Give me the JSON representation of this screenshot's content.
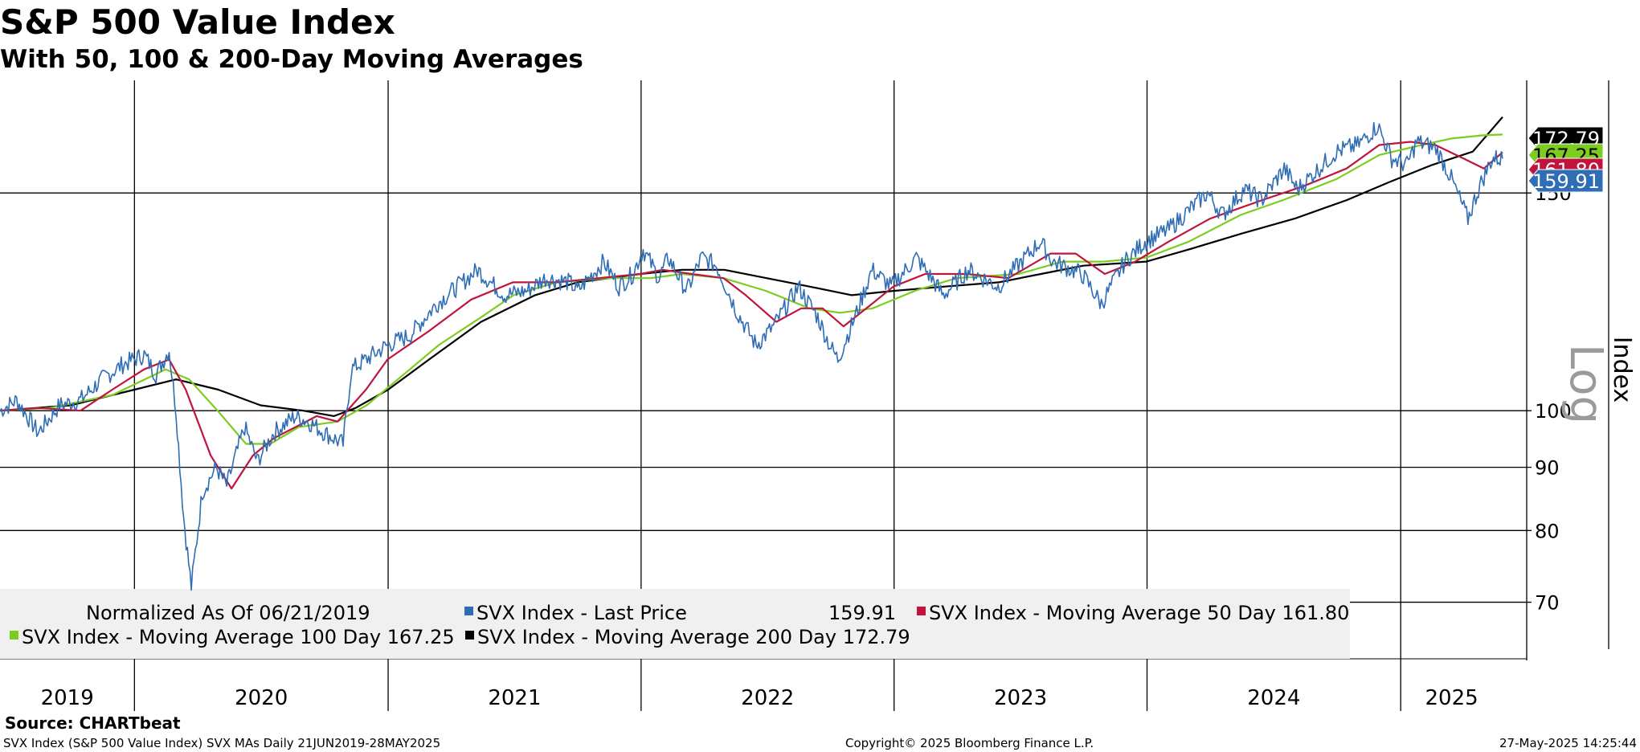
{
  "header": {
    "title": "S&P 500 Value Index",
    "subtitle": "With 50, 100 & 200-Day Moving Averages"
  },
  "footer": {
    "source": "Source: CHARTbeat",
    "description": "SVX Index (S&P 500 Value Index) SVX MAs  Daily 21JUN2019-28MAY2025",
    "copyright": "Copyright© 2025 Bloomberg Finance L.P.",
    "timestamp": "27-May-2025 14:25:44"
  },
  "chart_data": {
    "type": "line",
    "scale": "log",
    "axis_label": "Index",
    "scale_label": "Log",
    "ylim": [
      63,
      185
    ],
    "xlim": [
      "2019-06-21",
      "2025-05-28"
    ],
    "y_ticks": [
      70,
      80,
      90,
      100,
      150
    ],
    "x_labels": [
      "2019",
      "2020",
      "2021",
      "2022",
      "2023",
      "2024",
      "2025"
    ],
    "year_boundaries": [
      "2020-01-01",
      "2021-01-01",
      "2022-01-01",
      "2023-01-01",
      "2024-01-01",
      "2025-01-01"
    ],
    "legend": {
      "normalized_note": "Normalized As Of 06/21/2019",
      "entries": [
        {
          "label": "SVX Index - Last Price",
          "value": "159.91"
        },
        {
          "label": "SVX Index - Moving Average 50 Day",
          "value": "161.80"
        },
        {
          "label": "SVX Index - Moving Average 100 Day",
          "value": "167.25"
        },
        {
          "label": "SVX Index - Moving Average 200 Day",
          "value": "172.79"
        }
      ]
    },
    "end_labels": [
      {
        "series": "ma200",
        "value": "172.79"
      },
      {
        "series": "ma100",
        "value": "167.25"
      },
      {
        "series": "ma50",
        "value": "161.80"
      },
      {
        "series": "price",
        "value": "159.91"
      }
    ],
    "colors": {
      "price": "#2f6db5",
      "ma50": "#c0143c",
      "ma100": "#7ccd1f",
      "ma200": "#000000",
      "legend_bg": "#f0f0f0",
      "grid": "#000000"
    },
    "series": [
      {
        "name": "SVX Index - Last Price",
        "key": "price",
        "points": [
          [
            "2019-06-21",
            100
          ],
          [
            "2019-07-15",
            102
          ],
          [
            "2019-08-15",
            96
          ],
          [
            "2019-09-15",
            101
          ],
          [
            "2019-10-15",
            102
          ],
          [
            "2019-11-15",
            106
          ],
          [
            "2019-12-15",
            109
          ],
          [
            "2020-01-15",
            111
          ],
          [
            "2020-02-01",
            107
          ],
          [
            "2020-02-20",
            112
          ],
          [
            "2020-03-01",
            100
          ],
          [
            "2020-03-12",
            82
          ],
          [
            "2020-03-23",
            72
          ],
          [
            "2020-04-08",
            86
          ],
          [
            "2020-04-28",
            90
          ],
          [
            "2020-05-13",
            87
          ],
          [
            "2020-06-08",
            97
          ],
          [
            "2020-06-26",
            91
          ],
          [
            "2020-07-20",
            96
          ],
          [
            "2020-08-20",
            99
          ],
          [
            "2020-09-08",
            98
          ],
          [
            "2020-10-01",
            96
          ],
          [
            "2020-10-28",
            94
          ],
          [
            "2020-11-09",
            108
          ],
          [
            "2020-11-30",
            110
          ],
          [
            "2020-12-31",
            113
          ],
          [
            "2021-02-01",
            115
          ],
          [
            "2021-03-12",
            122
          ],
          [
            "2021-05-10",
            130
          ],
          [
            "2021-06-18",
            124
          ],
          [
            "2021-07-19",
            125
          ],
          [
            "2021-08-16",
            128
          ],
          [
            "2021-09-20",
            127
          ],
          [
            "2021-10-01",
            125
          ],
          [
            "2021-11-08",
            132
          ],
          [
            "2021-11-30",
            126
          ],
          [
            "2021-12-20",
            129
          ],
          [
            "2022-01-04",
            135
          ],
          [
            "2022-01-27",
            128
          ],
          [
            "2022-02-09",
            133
          ],
          [
            "2022-03-08",
            125
          ],
          [
            "2022-03-29",
            133
          ],
          [
            "2022-04-20",
            131
          ],
          [
            "2022-05-20",
            120
          ],
          [
            "2022-06-16",
            113
          ],
          [
            "2022-07-11",
            117
          ],
          [
            "2022-08-16",
            126
          ],
          [
            "2022-09-13",
            119
          ],
          [
            "2022-09-30",
            113
          ],
          [
            "2022-10-12",
            110
          ],
          [
            "2022-11-08",
            120
          ],
          [
            "2022-11-30",
            130
          ],
          [
            "2022-12-28",
            126
          ],
          [
            "2023-02-02",
            133
          ],
          [
            "2023-02-24",
            128
          ],
          [
            "2023-03-13",
            124
          ],
          [
            "2023-04-18",
            130
          ],
          [
            "2023-05-31",
            126
          ],
          [
            "2023-07-31",
            137
          ],
          [
            "2023-08-18",
            132
          ],
          [
            "2023-09-29",
            129
          ],
          [
            "2023-10-27",
            122
          ],
          [
            "2023-11-30",
            132
          ],
          [
            "2023-12-29",
            137
          ],
          [
            "2024-01-31",
            140
          ],
          [
            "2024-03-28",
            150
          ],
          [
            "2024-04-19",
            144
          ],
          [
            "2024-05-20",
            151
          ],
          [
            "2024-06-14",
            148
          ],
          [
            "2024-07-17",
            157
          ],
          [
            "2024-08-05",
            151
          ],
          [
            "2024-09-30",
            162
          ],
          [
            "2024-10-31",
            164
          ],
          [
            "2024-11-29",
            170
          ],
          [
            "2024-12-19",
            160
          ],
          [
            "2025-01-10",
            158
          ],
          [
            "2025-01-24",
            165
          ],
          [
            "2025-02-21",
            163
          ],
          [
            "2025-03-13",
            155
          ],
          [
            "2025-04-08",
            143
          ],
          [
            "2025-04-25",
            152
          ],
          [
            "2025-05-13",
            160
          ],
          [
            "2025-05-28",
            159.91
          ]
        ]
      },
      {
        "name": "SVX Index - Moving Average 50 Day",
        "key": "ma50",
        "points": [
          [
            "2019-06-21",
            100
          ],
          [
            "2019-08-15",
            100.5
          ],
          [
            "2019-10-15",
            100
          ],
          [
            "2019-11-30",
            104
          ],
          [
            "2020-01-15",
            108
          ],
          [
            "2020-02-20",
            110
          ],
          [
            "2020-03-15",
            104
          ],
          [
            "2020-04-20",
            92
          ],
          [
            "2020-05-20",
            86.5
          ],
          [
            "2020-06-20",
            92
          ],
          [
            "2020-07-20",
            95
          ],
          [
            "2020-09-20",
            99
          ],
          [
            "2020-10-20",
            98
          ],
          [
            "2020-11-30",
            104
          ],
          [
            "2020-12-31",
            110
          ],
          [
            "2021-03-01",
            116
          ],
          [
            "2021-05-01",
            123
          ],
          [
            "2021-06-30",
            127
          ],
          [
            "2021-09-01",
            127
          ],
          [
            "2021-11-01",
            128
          ],
          [
            "2021-12-31",
            129
          ],
          [
            "2022-02-01",
            130
          ],
          [
            "2022-03-15",
            129
          ],
          [
            "2022-04-30",
            128
          ],
          [
            "2022-06-01",
            124
          ],
          [
            "2022-07-15",
            118
          ],
          [
            "2022-08-20",
            121
          ],
          [
            "2022-09-20",
            121
          ],
          [
            "2022-10-20",
            117
          ],
          [
            "2022-11-30",
            122
          ],
          [
            "2022-12-31",
            126
          ],
          [
            "2023-02-15",
            129
          ],
          [
            "2023-04-15",
            129
          ],
          [
            "2023-06-15",
            128
          ],
          [
            "2023-08-15",
            134
          ],
          [
            "2023-09-20",
            134
          ],
          [
            "2023-11-01",
            129
          ],
          [
            "2023-12-15",
            132
          ],
          [
            "2024-02-01",
            137
          ],
          [
            "2024-04-01",
            143
          ],
          [
            "2024-06-15",
            148
          ],
          [
            "2024-08-15",
            152
          ],
          [
            "2024-10-15",
            157
          ],
          [
            "2024-12-01",
            164
          ],
          [
            "2025-01-15",
            165
          ],
          [
            "2025-02-20",
            164
          ],
          [
            "2025-04-01",
            160
          ],
          [
            "2025-05-01",
            157
          ],
          [
            "2025-05-28",
            161.8
          ]
        ]
      },
      {
        "name": "SVX Index - Moving Average 100 Day",
        "key": "ma100",
        "points": [
          [
            "2019-06-21",
            100
          ],
          [
            "2019-09-01",
            100.5
          ],
          [
            "2019-12-01",
            103
          ],
          [
            "2020-02-15",
            108
          ],
          [
            "2020-03-20",
            106
          ],
          [
            "2020-04-30",
            100
          ],
          [
            "2020-06-10",
            94
          ],
          [
            "2020-07-15",
            94
          ],
          [
            "2020-08-25",
            97
          ],
          [
            "2020-10-20",
            98
          ],
          [
            "2020-12-01",
            101
          ],
          [
            "2021-01-15",
            106
          ],
          [
            "2021-03-15",
            113
          ],
          [
            "2021-05-15",
            119
          ],
          [
            "2021-07-01",
            124
          ],
          [
            "2021-09-01",
            127
          ],
          [
            "2021-11-15",
            128
          ],
          [
            "2022-01-15",
            128
          ],
          [
            "2022-03-01",
            129
          ],
          [
            "2022-04-30",
            128
          ],
          [
            "2022-06-30",
            125
          ],
          [
            "2022-09-01",
            121
          ],
          [
            "2022-10-15",
            120
          ],
          [
            "2022-12-01",
            121
          ],
          [
            "2023-01-31",
            125
          ],
          [
            "2023-04-01",
            128
          ],
          [
            "2023-06-30",
            129
          ],
          [
            "2023-09-01",
            132
          ],
          [
            "2023-10-31",
            132
          ],
          [
            "2023-12-31",
            133
          ],
          [
            "2024-03-01",
            137
          ],
          [
            "2024-05-15",
            144
          ],
          [
            "2024-07-15",
            148
          ],
          [
            "2024-10-01",
            154
          ],
          [
            "2024-12-01",
            161
          ],
          [
            "2025-01-31",
            164
          ],
          [
            "2025-03-15",
            166
          ],
          [
            "2025-04-30",
            167
          ],
          [
            "2025-05-28",
            167.25
          ]
        ]
      },
      {
        "name": "SVX Index - Moving Average 200 Day",
        "key": "ma200",
        "points": [
          [
            "2019-06-21",
            100
          ],
          [
            "2019-10-01",
            101
          ],
          [
            "2020-01-01",
            104
          ],
          [
            "2020-03-01",
            106
          ],
          [
            "2020-05-01",
            104
          ],
          [
            "2020-07-01",
            101
          ],
          [
            "2020-09-01",
            100
          ],
          [
            "2020-10-15",
            99
          ],
          [
            "2020-11-15",
            100.5
          ],
          [
            "2021-01-01",
            104
          ],
          [
            "2021-03-01",
            110
          ],
          [
            "2021-05-15",
            118
          ],
          [
            "2021-08-01",
            124
          ],
          [
            "2021-10-01",
            127
          ],
          [
            "2021-12-31",
            129
          ],
          [
            "2022-03-01",
            130
          ],
          [
            "2022-05-01",
            130
          ],
          [
            "2022-07-01",
            128
          ],
          [
            "2022-09-01",
            126
          ],
          [
            "2022-11-01",
            124
          ],
          [
            "2023-01-01",
            125
          ],
          [
            "2023-03-15",
            126
          ],
          [
            "2023-06-01",
            127
          ],
          [
            "2023-08-01",
            129
          ],
          [
            "2023-10-01",
            131
          ],
          [
            "2023-12-31",
            132
          ],
          [
            "2024-03-01",
            135
          ],
          [
            "2024-05-15",
            139
          ],
          [
            "2024-08-01",
            143
          ],
          [
            "2024-10-15",
            148
          ],
          [
            "2024-12-15",
            153
          ],
          [
            "2025-02-15",
            158
          ],
          [
            "2025-04-15",
            162
          ],
          [
            "2025-05-28",
            172.79
          ]
        ]
      }
    ]
  }
}
